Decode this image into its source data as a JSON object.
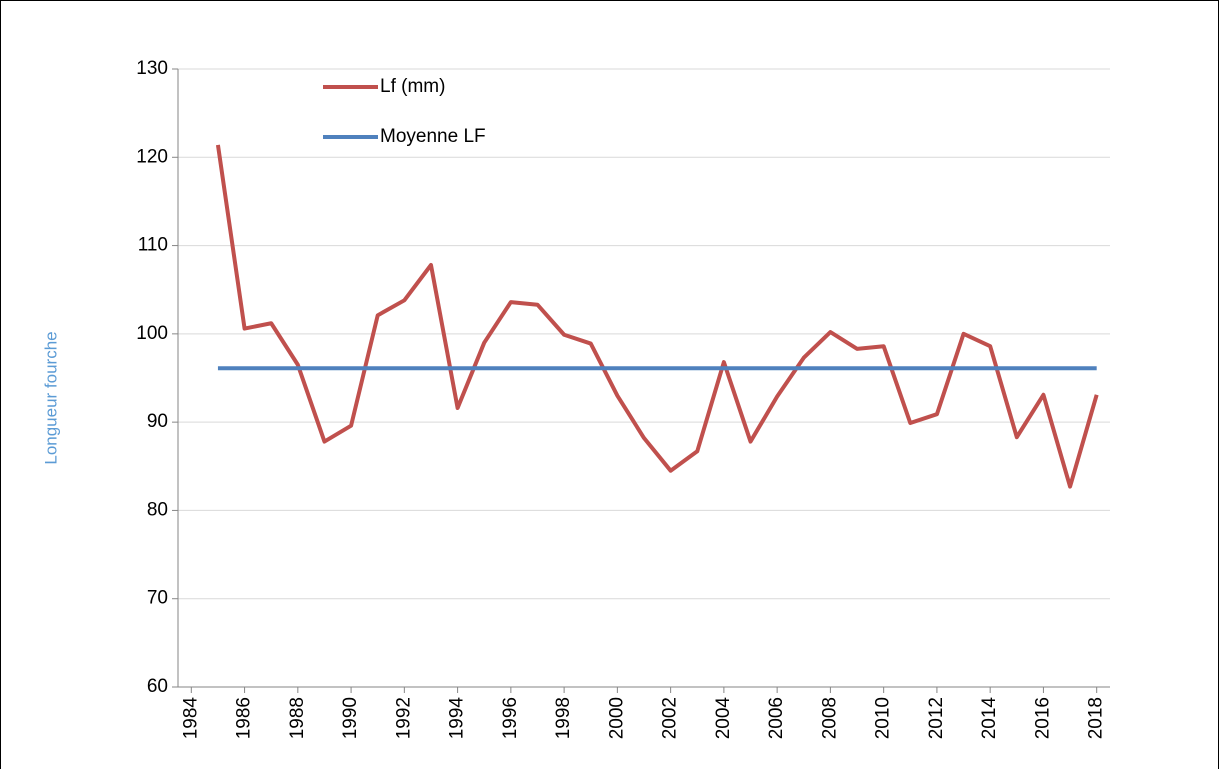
{
  "chart_data": {
    "type": "line",
    "y_label": "Longueur fourche",
    "x": [
      1985,
      1986,
      1987,
      1988,
      1989,
      1990,
      1991,
      1992,
      1993,
      1994,
      1995,
      1996,
      1997,
      1998,
      1999,
      2000,
      2001,
      2002,
      2003,
      2004,
      2005,
      2006,
      2007,
      2008,
      2009,
      2010,
      2011,
      2012,
      2013,
      2014,
      2015,
      2016,
      2017,
      2018
    ],
    "series": [
      {
        "name": "Lf (mm)",
        "color": "#c0504d",
        "values": [
          121.4,
          100.6,
          101.2,
          96.5,
          87.8,
          89.6,
          102.1,
          103.8,
          107.8,
          91.6,
          99.0,
          103.6,
          103.3,
          99.9,
          98.9,
          93.0,
          88.2,
          84.5,
          86.7,
          96.8,
          87.8,
          92.9,
          97.3,
          100.2,
          98.3,
          98.6,
          89.9,
          90.9,
          100.0,
          98.6,
          88.3,
          93.1,
          82.7,
          93.1
        ]
      },
      {
        "name": "Moyenne LF",
        "color": "#4f81bd",
        "values": [
          96.1,
          96.1,
          96.1,
          96.1,
          96.1,
          96.1,
          96.1,
          96.1,
          96.1,
          96.1,
          96.1,
          96.1,
          96.1,
          96.1,
          96.1,
          96.1,
          96.1,
          96.1,
          96.1,
          96.1,
          96.1,
          96.1,
          96.1,
          96.1,
          96.1,
          96.1,
          96.1,
          96.1,
          96.1,
          96.1,
          96.1,
          96.1,
          96.1,
          96.1
        ]
      }
    ],
    "xlim": [
      1983.5,
      2018.5
    ],
    "xticks": [
      1984,
      1986,
      1988,
      1990,
      1992,
      1994,
      1996,
      1998,
      2000,
      2002,
      2004,
      2006,
      2008,
      2010,
      2012,
      2014,
      2016,
      2018
    ],
    "ylim": [
      60,
      130
    ],
    "yticks": [
      60,
      70,
      80,
      90,
      100,
      110,
      120,
      130
    ],
    "grid": true
  }
}
